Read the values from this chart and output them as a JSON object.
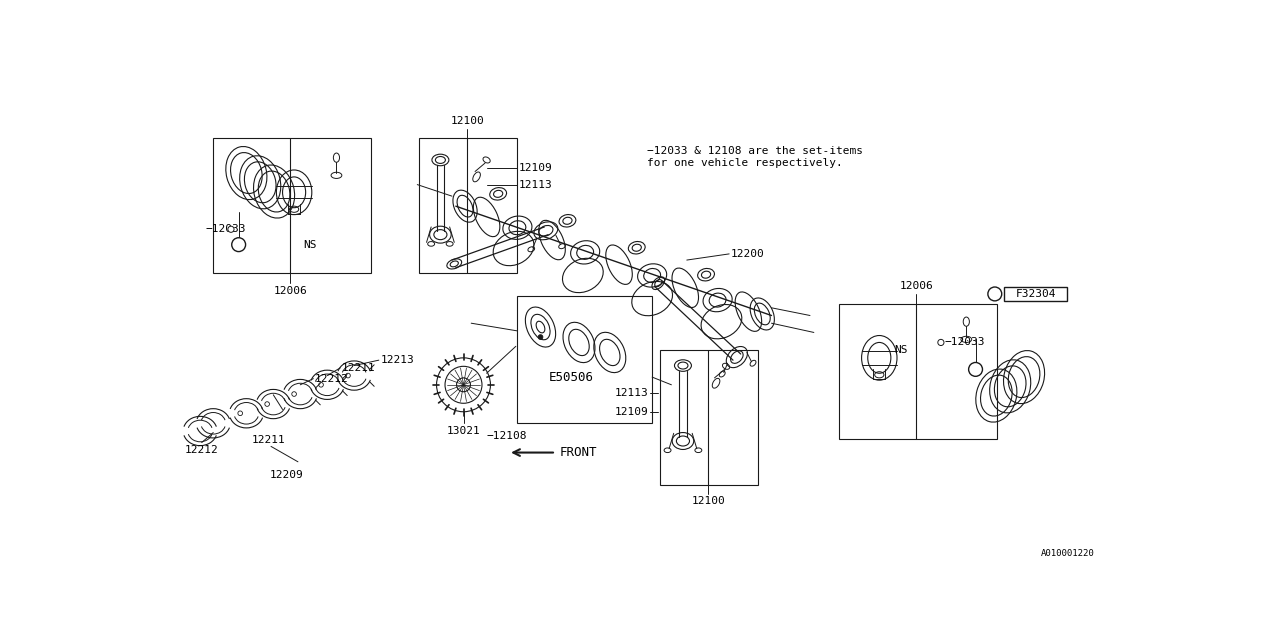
{
  "bg_color": "#ffffff",
  "line_color": "#1a1a1a",
  "note_line1": "−12033 & 12108 are the set-items",
  "note_line2": "for one vehicle respectively.",
  "parts": {
    "12100_top": "12100",
    "12109_top": "12109",
    "12113_top": "12113",
    "12200": "12200",
    "E50506": "E50506",
    "12108": "−12108",
    "13021": "13021",
    "12006_left": "12006",
    "12033_left": "−12033",
    "12213": "12213",
    "12211a": "12211",
    "12212a": "12212",
    "12211b": "12211",
    "12212b": "12212",
    "12209": "12209",
    "12006_right": "12006",
    "12109_bot": "12109",
    "12113_bot": "12113",
    "12100_bot": "12100",
    "12033_right": "−12033",
    "F32304": "F32304",
    "A010001220": "A010001220",
    "FRONT": "FRONT",
    "NS": "NS"
  }
}
